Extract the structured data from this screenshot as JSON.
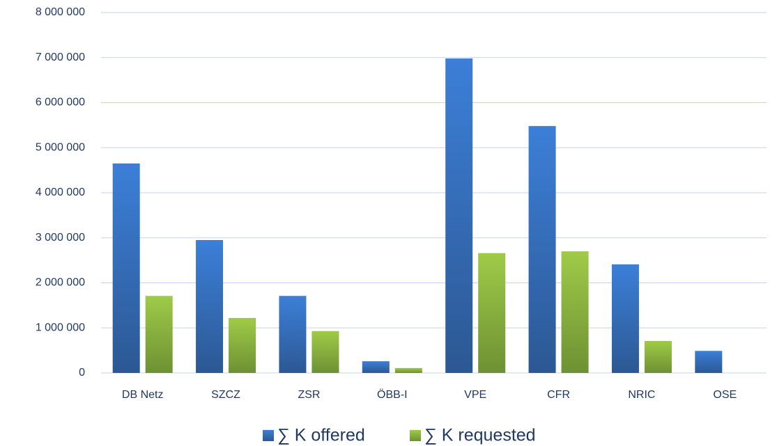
{
  "chart_data": {
    "type": "bar",
    "categories": [
      "DB Netz",
      "SZCZ",
      "ZSR",
      "ÖBB-I",
      "VPE",
      "CFR",
      "NRIC",
      "OSE"
    ],
    "series": [
      {
        "name": "∑ K offered",
        "color": "#3570c0",
        "values": [
          4650000,
          2950000,
          1710000,
          260000,
          6980000,
          5480000,
          2410000,
          490000
        ]
      },
      {
        "name": "∑ K requested",
        "color": "#8db43f",
        "values": [
          1710000,
          1220000,
          930000,
          110000,
          2660000,
          2700000,
          710000,
          0
        ]
      }
    ],
    "ylim": [
      0,
      8000000
    ],
    "yticks": [
      {
        "value": 0,
        "label": "0"
      },
      {
        "value": 1000000,
        "label": "1 000 000"
      },
      {
        "value": 2000000,
        "label": "2 000 000"
      },
      {
        "value": 3000000,
        "label": "3 000 000"
      },
      {
        "value": 4000000,
        "label": "4 000 000"
      },
      {
        "value": 5000000,
        "label": "5 000 000"
      },
      {
        "value": 6000000,
        "label": "6 000 000"
      },
      {
        "value": 7000000,
        "label": "7 000 000"
      },
      {
        "value": 8000000,
        "label": "8 000 000"
      }
    ],
    "grid": true,
    "legend": "bottom"
  }
}
